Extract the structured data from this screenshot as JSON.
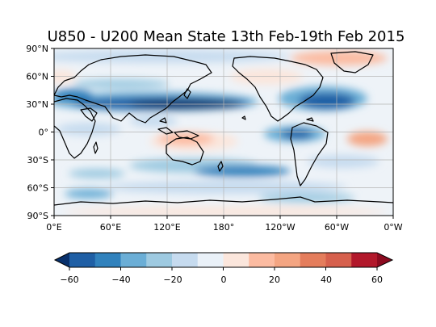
{
  "title": "U850 - U200 Mean State 13th Feb-19th Feb 2015",
  "map": {
    "lon_ticks": [
      "0°E",
      "60°E",
      "120°E",
      "180°",
      "120°W",
      "60°W",
      "0°W"
    ],
    "lat_ticks": [
      "90°N",
      "60°N",
      "30°N",
      "0°",
      "30°S",
      "60°S",
      "90°S"
    ],
    "lon_range": [
      0,
      360
    ],
    "lat_range": [
      -90,
      90
    ],
    "grid": true,
    "projection": "plate-carree",
    "coastlines": true
  },
  "colorbar": {
    "ticks": [
      "−60",
      "−40",
      "−20",
      "0",
      "20",
      "40",
      "60"
    ],
    "levels": [
      -70,
      -60,
      -50,
      -40,
      -30,
      -20,
      -10,
      0,
      10,
      20,
      30,
      40,
      50,
      60,
      70
    ],
    "extend": "both",
    "colormap": "RdBu_r",
    "colors": [
      "#08306b",
      "#1f5fa5",
      "#3182bd",
      "#6baed6",
      "#9ecae1",
      "#c6dbef",
      "#eaf1f8",
      "#fbe6dc",
      "#fcbba1",
      "#f4a582",
      "#e47d5c",
      "#d6604d",
      "#b2182b",
      "#8b0a1f"
    ]
  }
}
